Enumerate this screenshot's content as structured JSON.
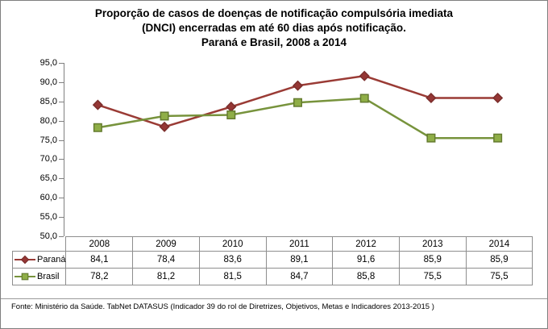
{
  "title": {
    "lines": [
      "Proporção de casos de doenças de notificação compulsória imediata",
      "(DNCI) encerradas em até 60 dias após notificação.",
      "Paraná e Brasil, 2008 a 2014"
    ]
  },
  "footer": {
    "source_text": "Fonte: Ministério da Saúde. TabNet DATASUS (Indicador 39 do rol de Diretrizes, Objetivos, Metas e Indicadores 2013-2015 )"
  },
  "axis": {
    "color": "#808080"
  },
  "table": {
    "border_color": "#8e8e8e"
  },
  "chart_data": {
    "type": "line",
    "title": "Proporção de casos de doenças de notificação compulsória imediata (DNCI) encerradas em até 60 dias após notificação. Paraná e Brasil, 2008 a 2014",
    "categories": [
      "2008",
      "2009",
      "2010",
      "2011",
      "2012",
      "2013",
      "2014"
    ],
    "series": [
      {
        "name": "Paraná",
        "values": [
          84.1,
          78.4,
          83.6,
          89.1,
          91.6,
          85.9,
          85.9
        ],
        "labels": [
          "84,1",
          "78,4",
          "83,6",
          "89,1",
          "91,6",
          "85,9",
          "85,9"
        ],
        "line_color": "#9a3b35",
        "marker": "diamond",
        "marker_fill": "#953735",
        "marker_stroke": "#7b2e2c"
      },
      {
        "name": "Brasil",
        "values": [
          78.2,
          81.2,
          81.5,
          84.7,
          85.8,
          75.5,
          75.5
        ],
        "labels": [
          "78,2",
          "81,2",
          "81,5",
          "84,7",
          "85,8",
          "75,5",
          "75,5"
        ],
        "line_color": "#77933c",
        "marker": "square",
        "marker_fill": "#8fae47",
        "marker_stroke": "#647b2f"
      }
    ],
    "ylim": [
      50,
      95
    ],
    "ytick_step": 5,
    "ytick_labels": [
      "95,0",
      "90,0",
      "85,0",
      "80,0",
      "75,0",
      "70,0",
      "65,0",
      "60,0",
      "55,0",
      "50,0"
    ],
    "grid": false,
    "legend_position": "data-table-left"
  }
}
